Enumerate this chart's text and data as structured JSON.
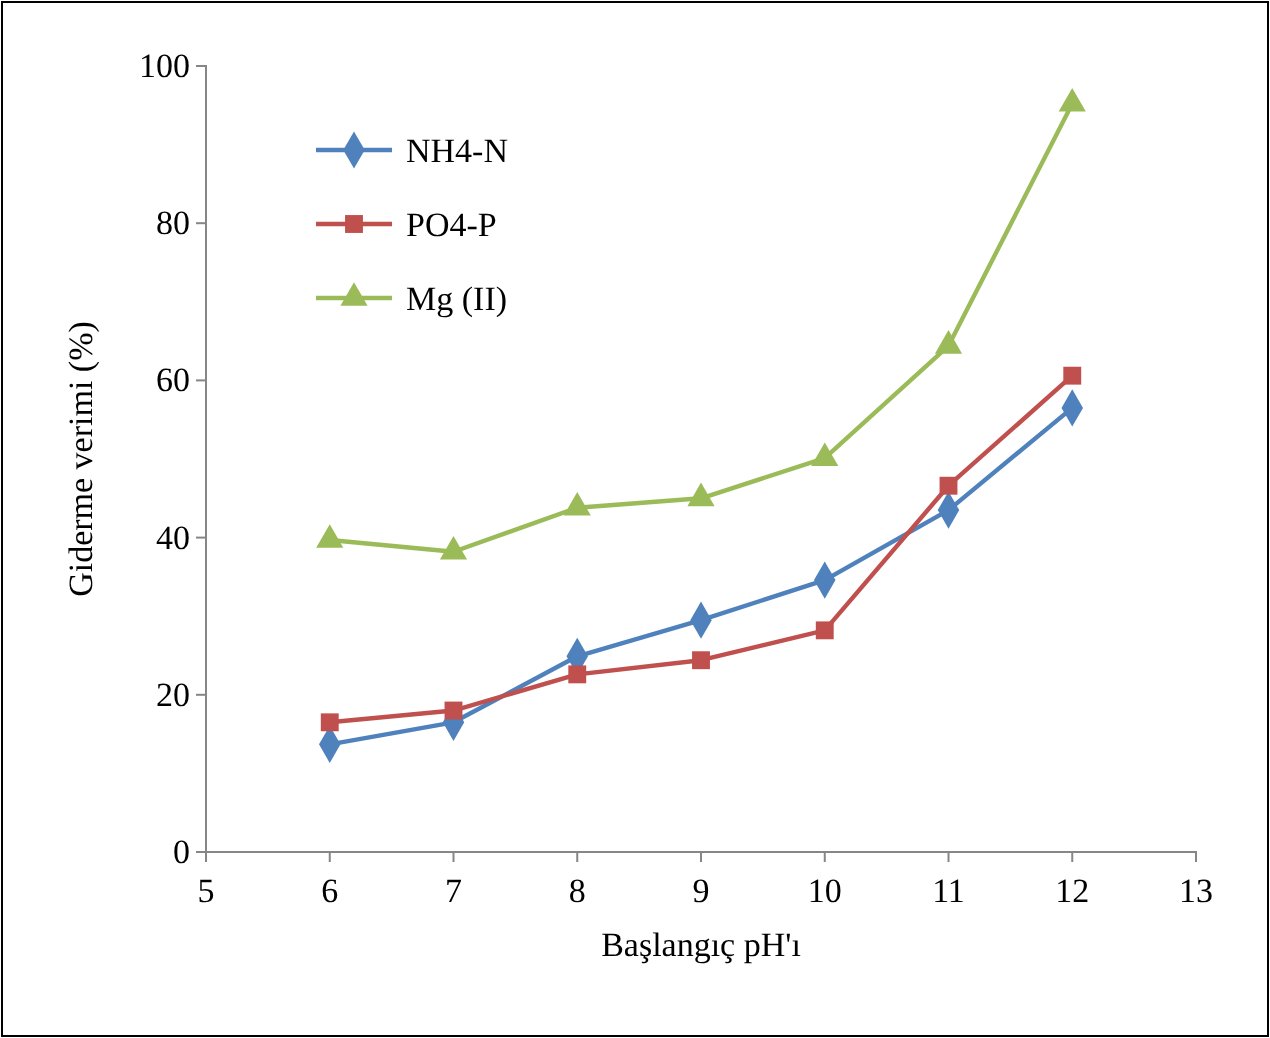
{
  "chart_data": {
    "type": "line",
    "xlabel": "Başlangıç pH'ı",
    "ylabel": "Giderme verimi (%)",
    "x": [
      6,
      7,
      8,
      9,
      10,
      11,
      12
    ],
    "xlim": [
      5,
      13
    ],
    "xticks": [
      5,
      6,
      7,
      8,
      9,
      10,
      11,
      12,
      13
    ],
    "ylim": [
      0,
      100
    ],
    "yticks": [
      0,
      20,
      40,
      60,
      80,
      100
    ],
    "grid": false,
    "legend": "top left",
    "series": [
      {
        "name": "NH4-N",
        "color": "#4f81bd",
        "marker": "diamond",
        "values": [
          13.7,
          16.5,
          24.9,
          29.5,
          34.6,
          43.5,
          56.5
        ]
      },
      {
        "name": "PO4-P",
        "color": "#c0504d",
        "marker": "square",
        "values": [
          16.5,
          18,
          22.6,
          24.4,
          28.2,
          46.6,
          60.6
        ]
      },
      {
        "name": "Mg (II)",
        "color": "#9bbb59",
        "marker": "triangle",
        "values": [
          39.7,
          38.2,
          43.8,
          45,
          50.1,
          64.4,
          95.2
        ]
      }
    ]
  }
}
